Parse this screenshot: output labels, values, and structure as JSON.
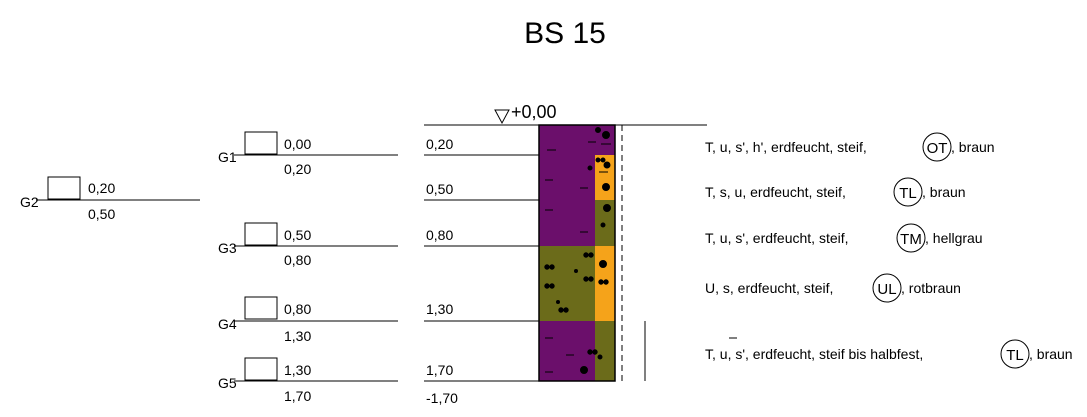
{
  "title": "BS 15",
  "top_level_label": "+0,00",
  "bottom_depth_label": "-1,70",
  "samples": [
    {
      "id": "G1",
      "top": "0,00",
      "bottom": "0,20"
    },
    {
      "id": "G2",
      "top": "0,20",
      "bottom": "0,50"
    },
    {
      "id": "G3",
      "top": "0,50",
      "bottom": "0,80"
    },
    {
      "id": "G4",
      "top": "0,80",
      "bottom": "1,30"
    },
    {
      "id": "G5",
      "top": "1,30",
      "bottom": "1,70"
    }
  ],
  "layer_boundaries": [
    "0,20",
    "0,50",
    "0,80",
    "1,30",
    "1,70"
  ],
  "layers": [
    {
      "pre": "T, u, s', h', erdfeucht, steif,",
      "group": "OT",
      "post": ", braun"
    },
    {
      "pre": "T, s, u, erdfeucht, steif,",
      "group": "TL",
      "post": ", braun"
    },
    {
      "pre": "T, u, s', erdfeucht, steif,",
      "group": "TM",
      "post": ", hellgrau"
    },
    {
      "pre": "U, s, erdfeucht, steif,",
      "group": "UL",
      "post": ", rotbraun"
    },
    {
      "pre": "T, u, s', erdfeucht, steif bis halbfest,",
      "group": "TL",
      "post": ", braun"
    }
  ],
  "colors": {
    "purple": "#6b0f6b",
    "olive": "#6b6b1a",
    "orange": "#f5a31a",
    "line": "#000000"
  }
}
